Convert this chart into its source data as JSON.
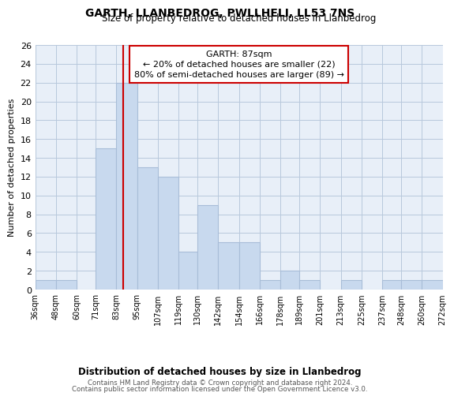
{
  "title": "GARTH, LLANBEDROG, PWLLHELI, LL53 7NS",
  "subtitle": "Size of property relative to detached houses in Llanbedrog",
  "xlabel": "Distribution of detached houses by size in Llanbedrog",
  "ylabel": "Number of detached properties",
  "bar_color": "#c8d9ee",
  "bar_edge_color": "#a8bdd8",
  "background_color": "#ffffff",
  "plot_bg_color": "#e8eff8",
  "grid_color": "#b8c8dc",
  "property_line_x": 87,
  "annotation_title": "GARTH: 87sqm",
  "annotation_line1": "← 20% of detached houses are smaller (22)",
  "annotation_line2": "80% of semi-detached houses are larger (89) →",
  "bin_edges": [
    36,
    48,
    60,
    71,
    83,
    95,
    107,
    119,
    130,
    142,
    154,
    166,
    178,
    189,
    201,
    213,
    225,
    237,
    248,
    260,
    272
  ],
  "bin_labels": [
    "36sqm",
    "48sqm",
    "60sqm",
    "71sqm",
    "83sqm",
    "95sqm",
    "107sqm",
    "119sqm",
    "130sqm",
    "142sqm",
    "154sqm",
    "166sqm",
    "178sqm",
    "189sqm",
    "201sqm",
    "213sqm",
    "225sqm",
    "237sqm",
    "248sqm",
    "260sqm",
    "272sqm"
  ],
  "counts": [
    1,
    1,
    0,
    15,
    22,
    13,
    12,
    4,
    9,
    5,
    5,
    1,
    2,
    1,
    0,
    1,
    0,
    1,
    1,
    1
  ],
  "ylim": [
    0,
    26
  ],
  "yticks": [
    0,
    2,
    4,
    6,
    8,
    10,
    12,
    14,
    16,
    18,
    20,
    22,
    24,
    26
  ],
  "footer_line1": "Contains HM Land Registry data © Crown copyright and database right 2024.",
  "footer_line2": "Contains public sector information licensed under the Open Government Licence v3.0.",
  "annotation_box_edge_color": "#cc0000",
  "property_line_color": "#cc0000"
}
